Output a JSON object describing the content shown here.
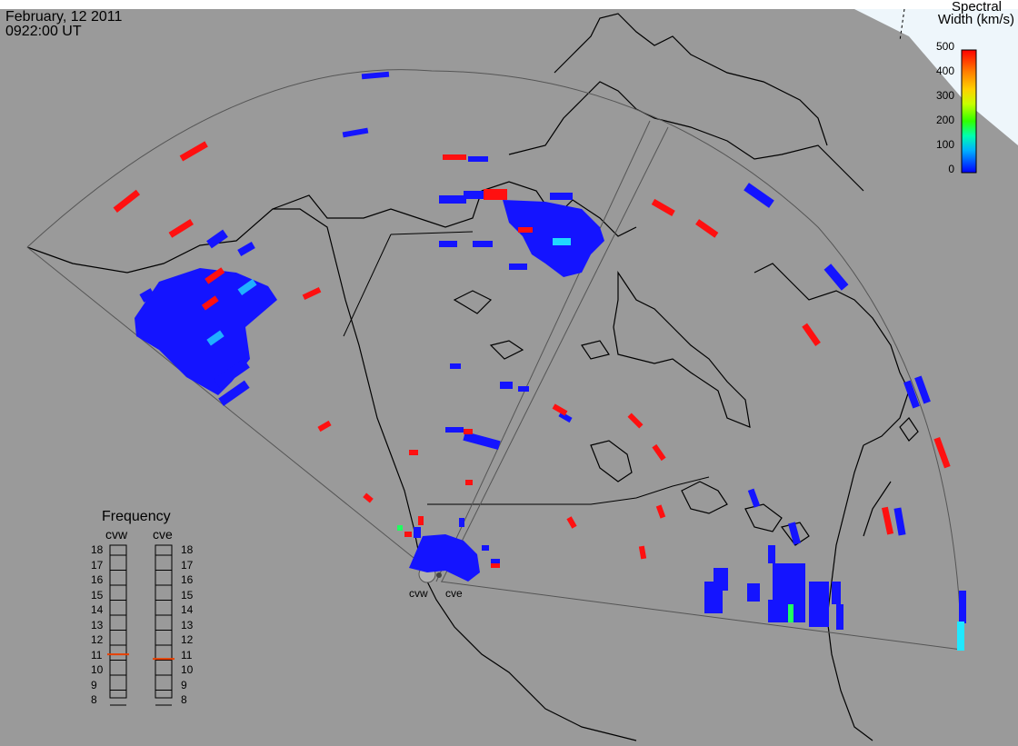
{
  "header": {
    "date": "February, 12 2011",
    "time": "0922:00 UT"
  },
  "scale": {
    "title_line1": "Spectral",
    "title_line2": "Width (km/s)",
    "ticks": [
      "500",
      "400",
      "300",
      "200",
      "100",
      "0"
    ],
    "colors": [
      "#0000ff",
      "#00b0ff",
      "#00ffb0",
      "#30ff00",
      "#c8ff00",
      "#ffd000",
      "#ff8000",
      "#ff0000"
    ]
  },
  "frequency_panel": {
    "title": "Frequency",
    "radars": [
      "cvw",
      "cve"
    ],
    "ticks": [
      "18",
      "17",
      "16",
      "15",
      "14",
      "13",
      "12",
      "11",
      "10",
      "9",
      "8"
    ],
    "cvw_value": 10.9,
    "cve_value": 10.6
  },
  "sites": [
    "cvw",
    "cve"
  ],
  "colors": {
    "background": "#9a9a9a",
    "daylight": "#eef6fb",
    "coast": "#000000",
    "fov_outline": "#5a5a5a",
    "low_width": "#1414ff",
    "high_width": "#ff1010",
    "mid_cyan": "#20d8ff",
    "mid_green": "#20ff60"
  }
}
